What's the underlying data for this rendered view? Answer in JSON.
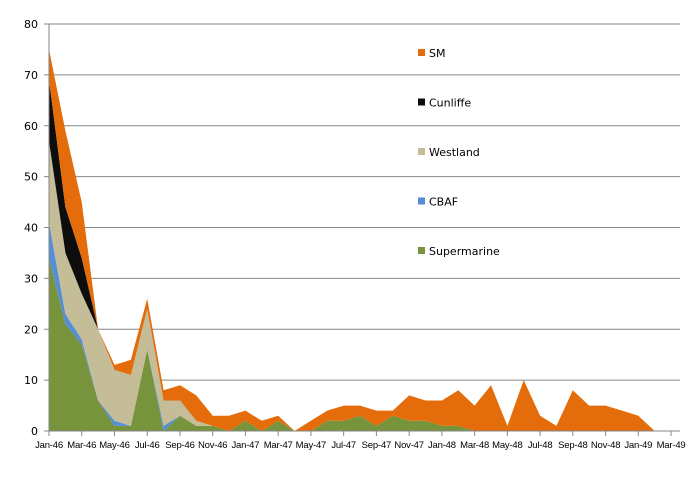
{
  "chart_data": {
    "type": "area",
    "stacked": true,
    "title": "",
    "xlabel": "",
    "ylabel": "",
    "ylim": [
      0,
      80
    ],
    "yticks": [
      0,
      10,
      20,
      30,
      40,
      50,
      60,
      70,
      80
    ],
    "grid": true,
    "legend_placement": "right-inside",
    "categories": [
      "Jan-46",
      "Feb-46",
      "Mar-46",
      "Apr-46",
      "May-46",
      "Jun-46",
      "Jul-46",
      "Aug-46",
      "Sep-46",
      "Oct-46",
      "Nov-46",
      "Dec-46",
      "Jan-47",
      "Feb-47",
      "Mar-47",
      "Apr-47",
      "May-47",
      "Jun-47",
      "Jul-47",
      "Aug-47",
      "Sep-47",
      "Oct-47",
      "Nov-47",
      "Dec-47",
      "Jan-48",
      "Feb-48",
      "Mar-48",
      "Apr-48",
      "May-48",
      "Jun-48",
      "Jul-48",
      "Aug-48",
      "Sep-48",
      "Oct-48",
      "Nov-48",
      "Dec-48",
      "Jan-49",
      "Feb-49",
      "Mar-49"
    ],
    "xtick_labels": [
      "Jan-46",
      "Mar-46",
      "May-46",
      "Jul-46",
      "Sep-46",
      "Nov-46",
      "Jan-47",
      "Mar-47",
      "May-47",
      "Jul-47",
      "Sep-47",
      "Nov-47",
      "Jan-48",
      "Mar-48",
      "May-48",
      "Jul-48",
      "Sep-48",
      "Nov-48",
      "Jan-49",
      "Mar-49"
    ],
    "series": [
      {
        "name": "Supermarine",
        "color": "#77933C",
        "values": [
          34,
          21,
          17,
          6,
          1,
          1,
          16,
          0,
          3,
          1,
          1,
          0,
          2,
          0,
          2,
          0,
          0,
          2,
          2,
          3,
          1,
          3,
          2,
          2,
          1,
          1,
          0,
          0,
          0,
          0,
          0,
          0,
          0,
          0,
          0,
          0,
          0,
          0,
          0
        ]
      },
      {
        "name": "CBAF",
        "color": "#558ED5",
        "values": [
          7,
          2,
          1,
          0,
          1,
          0,
          0,
          1,
          0,
          0,
          0,
          0,
          0,
          0,
          0,
          0,
          0,
          0,
          0,
          0,
          0,
          0,
          0,
          0,
          0,
          0,
          0,
          0,
          0,
          0,
          0,
          0,
          0,
          0,
          0,
          0,
          0,
          0,
          0
        ]
      },
      {
        "name": "Westland",
        "color": "#C4BD97",
        "values": [
          16,
          12,
          9,
          14,
          10,
          10,
          8,
          5,
          3,
          1,
          0,
          0,
          0,
          0,
          0,
          0,
          0,
          0,
          0,
          0,
          0,
          0,
          0,
          0,
          0,
          0,
          0,
          0,
          0,
          0,
          0,
          0,
          0,
          0,
          0,
          0,
          0,
          0,
          0
        ]
      },
      {
        "name": "Cunliffe",
        "color": "#0D0D0D",
        "values": [
          12,
          9,
          7,
          0,
          0,
          0,
          0,
          0,
          0,
          0,
          0,
          0,
          0,
          0,
          0,
          0,
          0,
          0,
          0,
          0,
          0,
          0,
          0,
          0,
          0,
          0,
          0,
          0,
          0,
          0,
          0,
          0,
          0,
          0,
          0,
          0,
          0,
          0,
          0
        ]
      },
      {
        "name": "SM",
        "color": "#E46C0A",
        "values": [
          6,
          15,
          11,
          0,
          1,
          3,
          2,
          2,
          3,
          5,
          2,
          3,
          2,
          2,
          1,
          0,
          2,
          2,
          3,
          2,
          3,
          1,
          5,
          4,
          5,
          7,
          5,
          9,
          1,
          10,
          3,
          1,
          8,
          5,
          5,
          4,
          3,
          0,
          0
        ]
      }
    ],
    "legend_order": [
      "SM",
      "Cunliffe",
      "Westland",
      "CBAF",
      "Supermarine"
    ]
  }
}
